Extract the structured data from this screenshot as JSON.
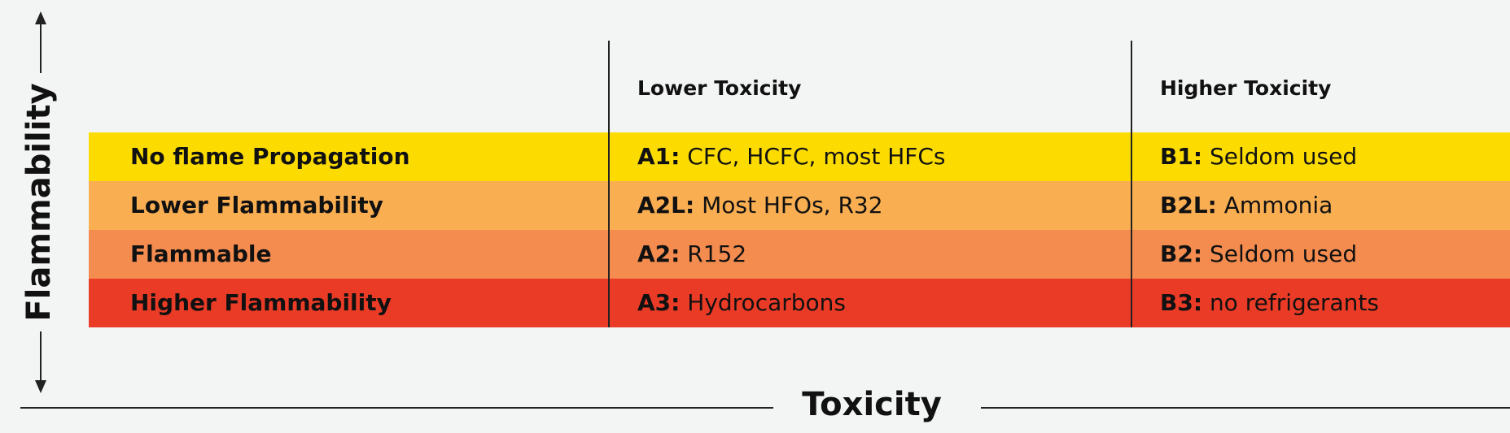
{
  "table": {
    "header": [
      "Lower Toxicity",
      "Higher Toxicity"
    ],
    "rows": [
      {
        "label": "No flame Propagation",
        "color": "#fcdc00",
        "cells": [
          {
            "code": "A1:",
            "text": "CFC, HCFC, most HFCs"
          },
          {
            "code": "B1:",
            "text": "Seldom used"
          }
        ]
      },
      {
        "label": "Lower Flammability",
        "color": "#f9ae52",
        "cells": [
          {
            "code": "A2L:",
            "text": "Most HFOs, R32"
          },
          {
            "code": "B2L:",
            "text": "Ammonia"
          }
        ]
      },
      {
        "label": "Flammable",
        "color": "#f48c50",
        "cells": [
          {
            "code": "A2:",
            "text": "R152"
          },
          {
            "code": "B2:",
            "text": "Seldom used"
          }
        ]
      },
      {
        "label": "Higher Flammability",
        "color": "#ea3b26",
        "cells": [
          {
            "code": "A3:",
            "text": "Hydrocarbons"
          },
          {
            "code": "B3:",
            "text": "no refrigerants"
          }
        ]
      }
    ]
  },
  "axes": {
    "y_label": "Flammability",
    "x_label": "Toxicity"
  }
}
